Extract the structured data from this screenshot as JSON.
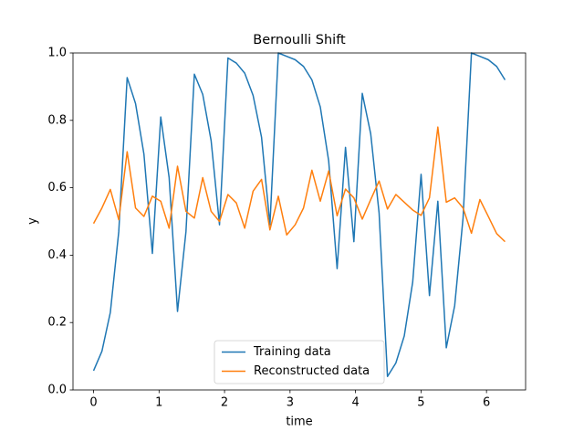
{
  "chart_data": {
    "type": "line",
    "title": "Bernoulli Shift",
    "x_label": "time",
    "y_label": "y",
    "x": [
      0,
      0.128,
      0.256,
      0.385,
      0.513,
      0.641,
      0.769,
      0.898,
      1.026,
      1.154,
      1.282,
      1.411,
      1.539,
      1.667,
      1.795,
      1.923,
      2.052,
      2.18,
      2.308,
      2.436,
      2.565,
      2.693,
      2.821,
      2.949,
      3.078,
      3.206,
      3.334,
      3.462,
      3.59,
      3.719,
      3.847,
      3.975,
      4.103,
      4.232,
      4.36,
      4.488,
      4.616,
      4.744,
      4.873,
      5.001,
      5.129,
      5.257,
      5.386,
      5.514,
      5.642,
      5.77,
      5.899,
      6.027,
      6.155,
      6.283
    ],
    "series": [
      {
        "name": "Training data",
        "color": "#1f77b4",
        "values": [
          0.057,
          0.115,
          0.23,
          0.47,
          0.927,
          0.85,
          0.7,
          0.405,
          0.81,
          0.63,
          0.233,
          0.47,
          0.937,
          0.877,
          0.74,
          0.49,
          0.985,
          0.97,
          0.94,
          0.874,
          0.75,
          0.49,
          1.0,
          0.99,
          0.98,
          0.96,
          0.92,
          0.84,
          0.68,
          0.36,
          0.72,
          0.44,
          0.88,
          0.76,
          0.525,
          0.04,
          0.08,
          0.16,
          0.32,
          0.64,
          0.28,
          0.56,
          0.125,
          0.25,
          0.51,
          1.0,
          0.99,
          0.98,
          0.96,
          0.92
        ]
      },
      {
        "name": "Reconstructed data",
        "color": "#ff7f0e",
        "values": [
          0.494,
          0.54,
          0.595,
          0.505,
          0.707,
          0.54,
          0.515,
          0.575,
          0.56,
          0.48,
          0.664,
          0.53,
          0.51,
          0.63,
          0.53,
          0.5,
          0.58,
          0.555,
          0.48,
          0.59,
          0.625,
          0.475,
          0.575,
          0.46,
          0.49,
          0.54,
          0.652,
          0.56,
          0.65,
          0.517,
          0.596,
          0.57,
          0.507,
          0.565,
          0.62,
          0.537,
          0.58,
          0.557,
          0.534,
          0.518,
          0.57,
          0.78,
          0.557,
          0.57,
          0.54,
          0.465,
          0.565,
          0.515,
          0.464,
          0.44
        ]
      }
    ],
    "xlim": [
      -0.314,
      6.597
    ],
    "xticks": [
      0,
      1,
      2,
      3,
      4,
      5,
      6
    ],
    "ylim": [
      0,
      1
    ],
    "yticks": [
      {
        "value": 0,
        "label": "0.0"
      },
      0.2,
      0.4,
      0.6,
      0.8,
      {
        "value": 1,
        "label": "1.0"
      }
    ],
    "legend": "lower center"
  }
}
